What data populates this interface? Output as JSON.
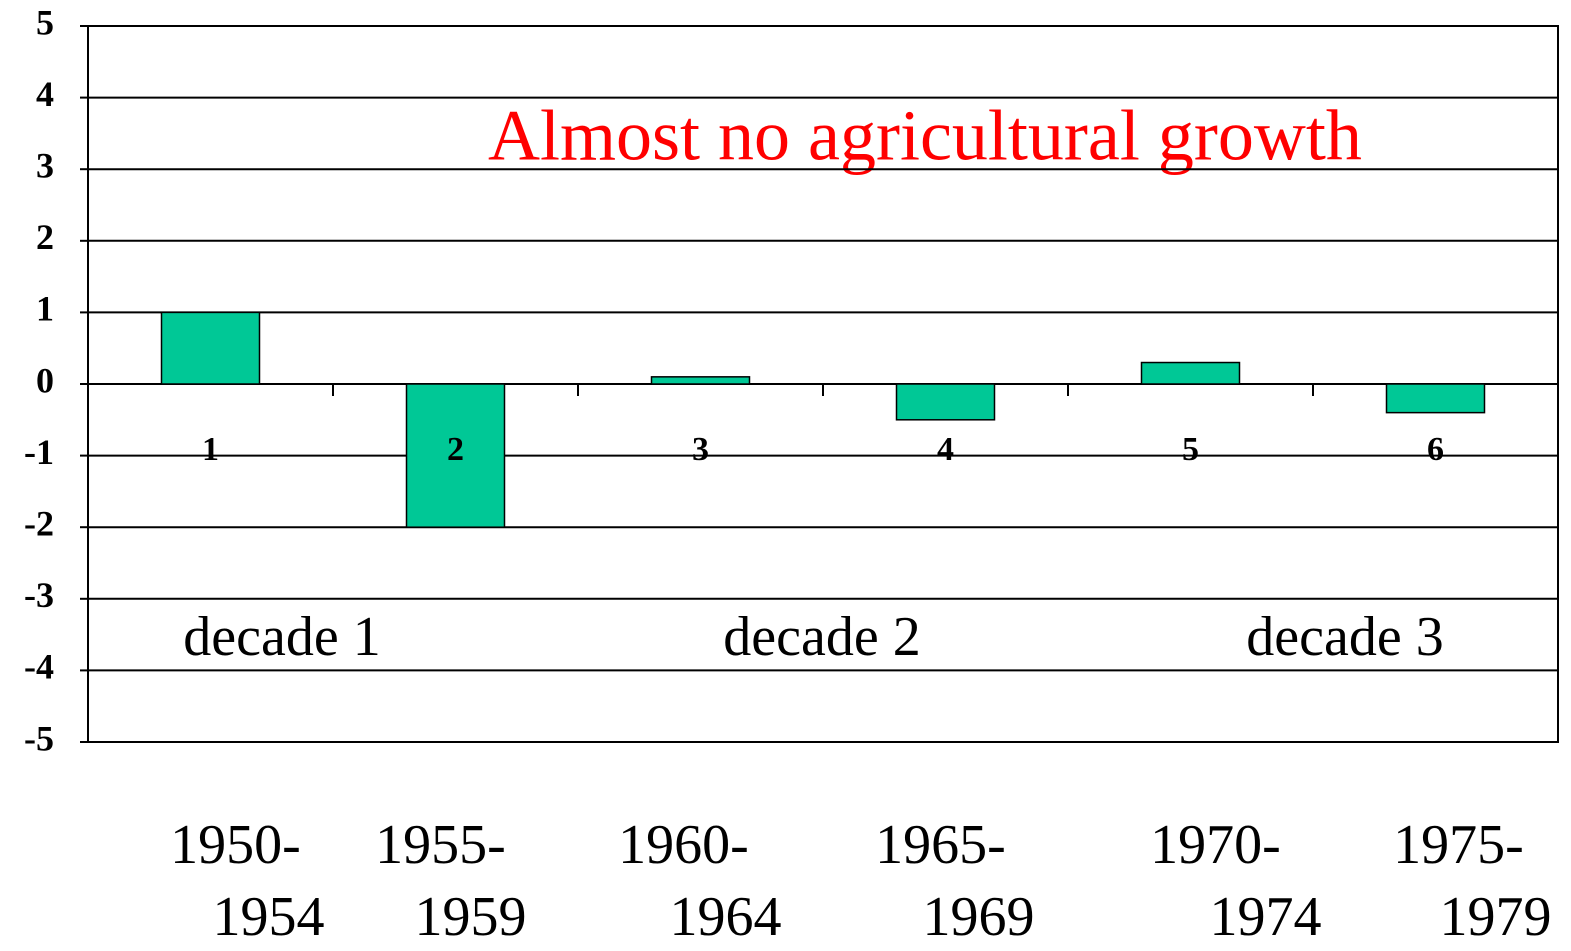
{
  "chart_data": {
    "type": "bar",
    "title": "Almost no agricultural growth",
    "categories": [
      "1",
      "2",
      "3",
      "4",
      "5",
      "6"
    ],
    "values": [
      1,
      -2,
      0.1,
      -0.5,
      0.3,
      -0.4
    ],
    "color": "#00c896",
    "period_labels": [
      [
        "1950-",
        "1954"
      ],
      [
        "1955-",
        "1959"
      ],
      [
        "1960-",
        "1964"
      ],
      [
        "1965-",
        "1969"
      ],
      [
        "1970-",
        "1974"
      ],
      [
        "1975-",
        "1979"
      ]
    ],
    "annotations": [
      "decade 1",
      "decade 2",
      "decade 3"
    ],
    "ylim": [
      -5,
      5
    ],
    "yticks": [
      -5,
      -4,
      -3,
      -2,
      -1,
      0,
      1,
      2,
      3,
      4,
      5
    ],
    "grid": true
  }
}
